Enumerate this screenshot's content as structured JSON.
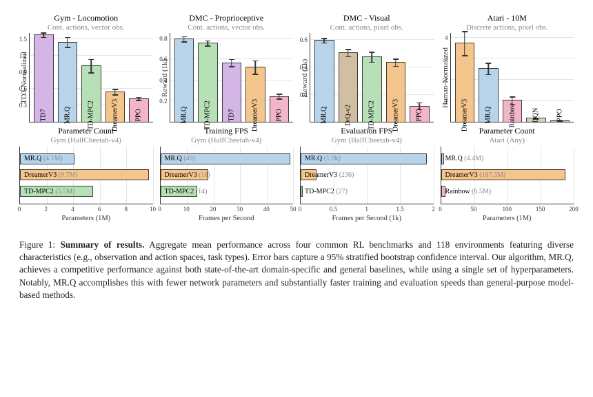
{
  "colors": {
    "TD7": "#d3b5e6",
    "MR.Q": "#b8d4ea",
    "TD-MPC2": "#b7e0b7",
    "DreamerV3": "#f4c58d",
    "PPO": "#f2b6c8",
    "DrQ-v2": "#d1bfa3",
    "Rainbow": "#f2b6c8",
    "DQN": "#d6d0b8",
    "err": "#333333",
    "grid": "#e5e5e5"
  },
  "row1": [
    {
      "title": "Gym - Locomotion",
      "subtitle": "Cont. actions, vector obs.",
      "ylabel": "TD3-Normalized",
      "ymax": 1.6,
      "yticks": [
        0.3,
        0.6,
        0.9,
        1.2,
        1.5
      ],
      "bars": [
        {
          "label": "TD7",
          "value": 1.58,
          "err": 0.05,
          "color": "TD7"
        },
        {
          "label": "MR.Q",
          "value": 1.45,
          "err": 0.1,
          "color": "MR.Q"
        },
        {
          "label": "TD-MPC2",
          "value": 1.02,
          "err": 0.13,
          "color": "TD-MPC2"
        },
        {
          "label": "DreamerV3",
          "value": 0.55,
          "err": 0.06,
          "color": "DreamerV3"
        },
        {
          "label": "PPO",
          "value": 0.43,
          "err": 0.04,
          "color": "PPO"
        }
      ]
    },
    {
      "title": "DMC - Proprioceptive",
      "subtitle": "Cont. actions, vector obs.",
      "ylabel": "Reward (1k)",
      "ymax": 0.85,
      "yticks": [
        0.2,
        0.4,
        0.6,
        0.8
      ],
      "bars": [
        {
          "label": "MR.Q",
          "value": 0.8,
          "err": 0.03,
          "color": "MR.Q"
        },
        {
          "label": "TD-MPC2",
          "value": 0.76,
          "err": 0.03,
          "color": "TD-MPC2"
        },
        {
          "label": "TD7",
          "value": 0.57,
          "err": 0.04,
          "color": "TD7"
        },
        {
          "label": "DreamerV3",
          "value": 0.53,
          "err": 0.07,
          "color": "DreamerV3"
        },
        {
          "label": "PPO",
          "value": 0.25,
          "err": 0.03,
          "color": "PPO"
        }
      ]
    },
    {
      "title": "DMC - Visual",
      "subtitle": "Cont. actions, pixel obs.",
      "ylabel": "Reward (1k)",
      "ymax": 0.65,
      "yticks": [
        0.2,
        0.4,
        0.6
      ],
      "bars": [
        {
          "label": "MR.Q",
          "value": 0.6,
          "err": 0.02,
          "color": "MR.Q"
        },
        {
          "label": "DrQ-v2",
          "value": 0.51,
          "err": 0.03,
          "color": "DrQ-v2"
        },
        {
          "label": "TD-MPC2",
          "value": 0.48,
          "err": 0.04,
          "color": "TD-MPC2"
        },
        {
          "label": "DreamerV3",
          "value": 0.44,
          "err": 0.03,
          "color": "DreamerV3"
        },
        {
          "label": "PPO",
          "value": 0.12,
          "err": 0.03,
          "color": "PPO"
        }
      ]
    },
    {
      "title": "Atari - 10M",
      "subtitle": "Discrete actions, pixel obs.",
      "ylabel": "Human-Normalized",
      "ymax": 4.2,
      "yticks": [
        1.0,
        2.0,
        3.0,
        4.0
      ],
      "bars": [
        {
          "label": "DreamerV3",
          "value": 3.75,
          "err": 0.6,
          "color": "DreamerV3"
        },
        {
          "label": "MR.Q",
          "value": 2.55,
          "err": 0.3,
          "color": "MR.Q"
        },
        {
          "label": "Rainbow",
          "value": 1.05,
          "err": 0.2,
          "color": "Rainbow"
        },
        {
          "label": "DQN",
          "value": 0.2,
          "err": 0.05,
          "color": "DQN"
        },
        {
          "label": "PPO",
          "value": 0.08,
          "err": 0.03,
          "color": "PPO"
        }
      ]
    }
  ],
  "row2": [
    {
      "title": "Parameter Count",
      "subtitle": "Gym (HalfCheetah-v4)",
      "xlabel": "Parameters (1M)",
      "xmax": 10,
      "xticks": [
        0,
        2,
        4,
        6,
        8,
        10
      ],
      "bars": [
        {
          "label": "MR.Q",
          "paren": "(4.1M)",
          "value": 4.1,
          "color": "MR.Q"
        },
        {
          "label": "DreamerV3",
          "paren": "(9.7M)",
          "value": 9.7,
          "color": "DreamerV3"
        },
        {
          "label": "TD-MPC2",
          "paren": "(5.5M)",
          "value": 5.5,
          "color": "TD-MPC2"
        }
      ]
    },
    {
      "title": "Training FPS",
      "subtitle": "Gym (HalfCheetah-v4)",
      "xlabel": "Frames per Second",
      "xmax": 50,
      "xticks": [
        0,
        10,
        20,
        30,
        40,
        50
      ],
      "bars": [
        {
          "label": "MR.Q",
          "paren": "(49)",
          "value": 49,
          "color": "MR.Q"
        },
        {
          "label": "DreamerV3",
          "paren": "(18)",
          "value": 18,
          "color": "DreamerV3"
        },
        {
          "label": "TD-MPC2",
          "paren": "(14)",
          "value": 14,
          "color": "TD-MPC2"
        }
      ]
    },
    {
      "title": "Evaluation FPS",
      "subtitle": "Gym (HalfCheetah-v4)",
      "xlabel": "Frames per Second (1k)",
      "xmax": 2.0,
      "xticks": [
        0.0,
        0.5,
        1.0,
        1.5,
        2.0
      ],
      "bars": [
        {
          "label": "MR.Q",
          "paren": "(1.9k)",
          "value": 1.9,
          "color": "MR.Q"
        },
        {
          "label": "DreamerV3",
          "paren": "(236)",
          "value": 0.236,
          "color": "DreamerV3"
        },
        {
          "label": "TD-MPC2",
          "paren": "(27)",
          "value": 0.027,
          "color": "TD-MPC2"
        }
      ]
    },
    {
      "title": "Parameter Count",
      "subtitle": "Atari (Any)",
      "xlabel": "Parameters (1M)",
      "xmax": 200,
      "xticks": [
        0,
        50,
        100,
        150,
        200
      ],
      "bars": [
        {
          "label": "MR.Q",
          "paren": "(4.4M)",
          "value": 4.4,
          "color": "MR.Q"
        },
        {
          "label": "DreamerV3",
          "paren": "(187.3M)",
          "value": 187.3,
          "color": "DreamerV3"
        },
        {
          "label": "Rainbow",
          "paren": "(6.5M)",
          "value": 6.5,
          "color": "Rainbow"
        }
      ]
    }
  ],
  "caption": {
    "lead": "Figure 1: ",
    "bold": "Summary of results.",
    "text": " Aggregate mean performance across four common RL benchmarks and 118 environments featuring diverse characteristics (e.g., observation and action spaces, task types). Error bars capture a 95% stratified bootstrap confidence interval. Our algorithm, MR.Q, achieves a competitive performance against both state-of-the-art domain-specific and general baselines, while using a single set of hyperparameters. Notably, MR.Q accomplishes this with fewer network parameters and substantially faster training and evaluation speeds than general-purpose model-based methods."
  }
}
